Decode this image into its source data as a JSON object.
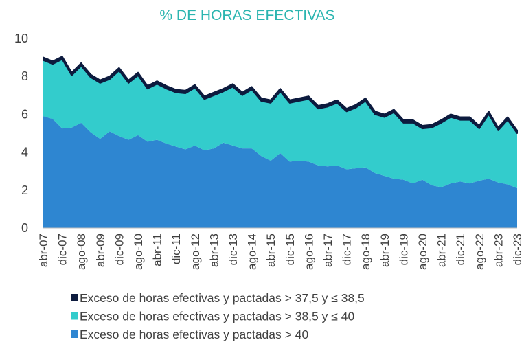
{
  "chart_data": {
    "type": "stacked_area",
    "title": "% DE HORAS EFECTIVAS",
    "categories": [
      "abr-07",
      null,
      "dic-07",
      null,
      "ago-08",
      null,
      "abr-09",
      null,
      "dic-09",
      null,
      "ago-10",
      null,
      "abr-11",
      null,
      "dic-11",
      null,
      "ago-12",
      null,
      "abr-13",
      null,
      "dic-13",
      null,
      "ago-14",
      null,
      "abr-15",
      null,
      "dic-15",
      null,
      "ago-16",
      null,
      "abr-17",
      null,
      "dic-17",
      null,
      "ago-18",
      null,
      "abr-19",
      null,
      "dic-19",
      null,
      "ago-20",
      null,
      "abr-21",
      null,
      "dic-21",
      null,
      "ago-22",
      null,
      "abr-23",
      null,
      "dic-23"
    ],
    "series": [
      {
        "name": "Exceso de horas efectivas y pactadas > 37,5 y ≤ 38,5",
        "color": "#0d1b3e",
        "values": [
          0.15,
          0.15,
          0.15,
          0.15,
          0.15,
          0.15,
          0.15,
          0.15,
          0.15,
          0.15,
          0.15,
          0.15,
          0.15,
          0.15,
          0.15,
          0.15,
          0.15,
          0.15,
          0.15,
          0.15,
          0.15,
          0.15,
          0.15,
          0.15,
          0.15,
          0.15,
          0.15,
          0.15,
          0.15,
          0.15,
          0.15,
          0.15,
          0.15,
          0.15,
          0.15,
          0.15,
          0.15,
          0.15,
          0.15,
          0.15,
          0.15,
          0.15,
          0.15,
          0.15,
          0.15,
          0.15,
          0.15,
          0.15,
          0.15,
          0.15,
          0.15
        ]
      },
      {
        "name": "Exceso de horas efectivas y pactadas > 38,5 y ≤ 40",
        "color": "#33cccc",
        "values": [
          2.95,
          2.9,
          3.65,
          2.75,
          3.0,
          2.9,
          2.95,
          2.75,
          3.45,
          3.0,
          3.15,
          2.8,
          2.95,
          2.9,
          2.85,
          2.95,
          3.05,
          2.7,
          2.8,
          2.7,
          3.1,
          2.8,
          3.1,
          2.9,
          3.05,
          3.25,
          3.1,
          3.15,
          3.3,
          3.0,
          3.15,
          3.3,
          3.05,
          3.2,
          3.5,
          3.1,
          3.1,
          3.5,
          3.0,
          3.2,
          2.7,
          3.05,
          3.4,
          3.5,
          3.25,
          3.35,
          2.75,
          3.4,
          2.75,
          3.4,
          2.9
        ]
      },
      {
        "name": "Exceso de horas efectivas y pactadas > 40",
        "color": "#2e86d1",
        "values": [
          5.9,
          5.75,
          5.25,
          5.3,
          5.55,
          5.05,
          4.7,
          5.1,
          4.85,
          4.65,
          4.9,
          4.55,
          4.65,
          4.45,
          4.3,
          4.15,
          4.35,
          4.1,
          4.2,
          4.5,
          4.35,
          4.2,
          4.2,
          3.8,
          3.55,
          3.95,
          3.5,
          3.55,
          3.5,
          3.3,
          3.25,
          3.3,
          3.1,
          3.15,
          3.2,
          2.9,
          2.75,
          2.6,
          2.55,
          2.35,
          2.55,
          2.25,
          2.15,
          2.35,
          2.45,
          2.35,
          2.5,
          2.6,
          2.4,
          2.3,
          2.1
        ]
      }
    ],
    "ylim": [
      0,
      10
    ],
    "yticks": [
      0,
      2,
      4,
      6,
      8,
      10
    ]
  }
}
